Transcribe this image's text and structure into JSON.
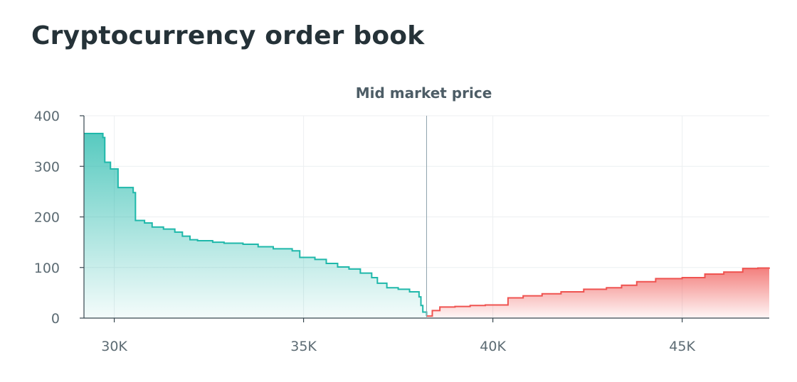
{
  "title": "Cryptocurrency order book",
  "chart_data": {
    "type": "area",
    "title": "Cryptocurrency order book",
    "xlabel": "",
    "ylabel": "",
    "xlim": [
      29200,
      47300
    ],
    "ylim": [
      0,
      400
    ],
    "x_ticks": [
      30000,
      35000,
      40000,
      45000
    ],
    "x_tick_labels": [
      "30K",
      "35K",
      "40K",
      "45K"
    ],
    "y_ticks": [
      0,
      100,
      200,
      300,
      400
    ],
    "y_tick_labels": [
      "0",
      "100",
      "200",
      "300",
      "400"
    ],
    "grid": true,
    "annotation": {
      "label": "Mid market price",
      "x": 38250
    },
    "colors": {
      "bids": "#1fb8aa",
      "asks": "#ef5350"
    },
    "series": [
      {
        "kind": "step-area",
        "color": "#1fb8aa",
        "x": [
          29200,
          29700,
          29750,
          29900,
          30100,
          30500,
          30560,
          30800,
          31000,
          31300,
          31600,
          31800,
          32000,
          32200,
          32600,
          32900,
          33400,
          33800,
          34200,
          34700,
          34900,
          35300,
          35600,
          35900,
          36200,
          36500,
          36800,
          36950,
          37200,
          37500,
          37800,
          38050,
          38100,
          38150,
          38250
        ],
        "y": [
          365,
          357,
          308,
          295,
          258,
          248,
          193,
          188,
          180,
          176,
          170,
          162,
          155,
          153,
          150,
          148,
          146,
          141,
          137,
          133,
          120,
          116,
          108,
          101,
          97,
          89,
          80,
          69,
          60,
          57,
          52,
          42,
          25,
          12,
          4
        ]
      },
      {
        "kind": "step-area",
        "color": "#ef5350",
        "x": [
          38250,
          38400,
          38600,
          39000,
          39400,
          39800,
          40400,
          40800,
          41300,
          41800,
          42400,
          43000,
          43400,
          43800,
          44300,
          45000,
          45600,
          46100,
          46600,
          47000,
          47300
        ],
        "y": [
          4,
          15,
          22,
          23,
          25,
          26,
          40,
          44,
          48,
          52,
          57,
          60,
          65,
          72,
          78,
          80,
          87,
          91,
          98,
          99,
          100
        ]
      }
    ]
  }
}
